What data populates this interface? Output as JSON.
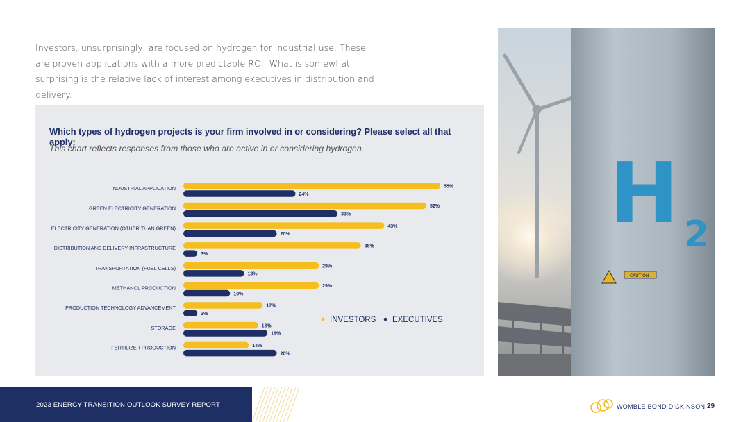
{
  "intro_text": "Investors, unsurprisingly, are focused on hydrogen for industrial use. These are proven applications with a more predictable ROI. What is somewhat surprising is the relative lack of interest among executives in distribution and delivery.",
  "chart_data": {
    "type": "bar",
    "orientation": "horizontal",
    "title": "Which types of hydrogen projects is your firm involved in or considering? Please select all that apply:",
    "subtitle": "This chart reflects responses from those who are active in or considering hydrogen.",
    "categories": [
      "INDUSTRIAL APPLICATION",
      "GREEN ELECTRICITY GENERATION",
      "ELECTRICITY GENERATION (OTHER THAN GREEN)",
      "DISTRIBUTION AND DELIVERY INFRASTRUCTURE",
      "TRANSPORTATION (FUEL CELLS)",
      "METHANOL PRODUCTION",
      "PRODUCTION TECHNOLOGY ADVANCEMENT",
      "STORAGE",
      "FERTILIZER PRODUCTION"
    ],
    "series": [
      {
        "name": "INVESTORS",
        "color": "#f5be1e",
        "values": [
          55,
          52,
          43,
          38,
          29,
          29,
          17,
          16,
          14
        ]
      },
      {
        "name": "EXECUTIVES",
        "color": "#1e2f66",
        "values": [
          24,
          33,
          20,
          3,
          13,
          10,
          3,
          18,
          20
        ]
      }
    ],
    "value_suffix": "%",
    "legend_position": "bottom-right",
    "xlim": [
      0,
      60
    ]
  },
  "photo": {
    "subject": "hydrogen-tank-with-wind-turbine",
    "label_h": "H",
    "label_2": "2",
    "sign_label": "CAUTION",
    "tank_color": "#aebac3",
    "label_color": "#2f93c6"
  },
  "footer": {
    "report_title": "2023 ENERGY TRANSITION OUTLOOK SURVEY REPORT",
    "brand": "WOMBLE BOND DICKINSON",
    "page_number": "29",
    "band_color": "#1e2f66",
    "accent_color": "#f5be1e"
  }
}
